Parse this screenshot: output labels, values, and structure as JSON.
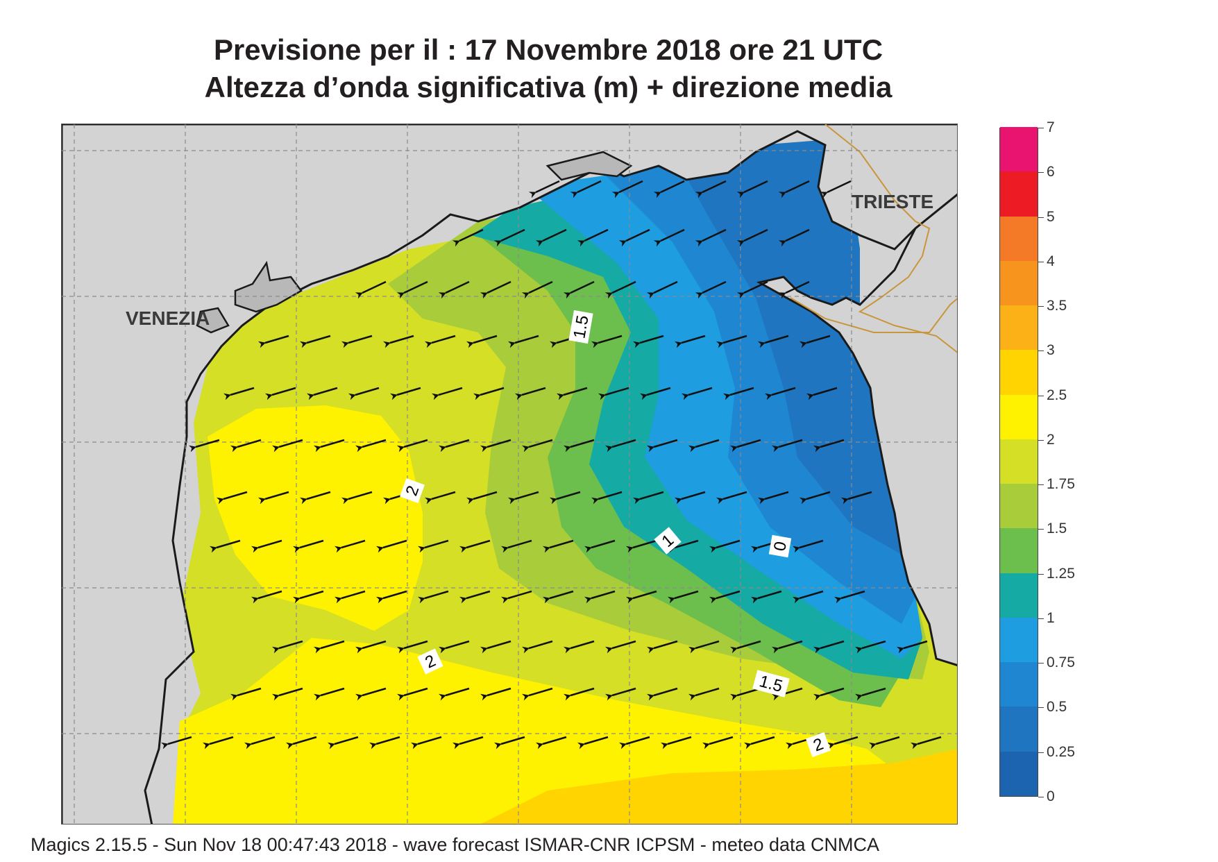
{
  "header": {
    "title_line1": "Previsione per il  :  17 Novembre  2018   ore 21 UTC",
    "title_line2": "Altezza d’onda significativa (m) + direzione media"
  },
  "map": {
    "cities": {
      "venezia": "VENEZIA",
      "trieste": "TRIESTE"
    },
    "contour_labels": [
      "1.5",
      "2",
      "1",
      "0",
      "2",
      "1.5",
      "2"
    ],
    "wave_direction": "towards west-southwest",
    "colors": {
      "land": "#d3d3d3",
      "coastline": "#1a1a1a",
      "border": "#c8963c",
      "grid": "#8a8a8a",
      "arrow": "#111111"
    }
  },
  "legend": {
    "unit": "m",
    "levels": [
      {
        "value": "0",
        "color": "#1c64b0"
      },
      {
        "value": "0.25",
        "color": "#1f75c0"
      },
      {
        "value": "0.5",
        "color": "#1f87d2"
      },
      {
        "value": "0.75",
        "color": "#1e9de0"
      },
      {
        "value": "1",
        "color": "#16aaa5"
      },
      {
        "value": "1.25",
        "color": "#6cbf4c"
      },
      {
        "value": "1.5",
        "color": "#a8cc3a"
      },
      {
        "value": "1.75",
        "color": "#d4df26"
      },
      {
        "value": "2",
        "color": "#fff200"
      },
      {
        "value": "2.5",
        "color": "#ffd400"
      },
      {
        "value": "3",
        "color": "#fcb216"
      },
      {
        "value": "3.5",
        "color": "#f7941d"
      },
      {
        "value": "4",
        "color": "#f47a28"
      },
      {
        "value": "5",
        "color": "#ed1c24"
      },
      {
        "value": "6",
        "color": "#e8146f"
      },
      {
        "value": "7",
        "color": ""
      }
    ]
  },
  "footer": {
    "credit": "Magics 2.15.5 - Sun Nov 18 00:47:43 2018 - wave forecast  ISMAR-CNR  ICPSM - meteo data   CNMCA"
  }
}
